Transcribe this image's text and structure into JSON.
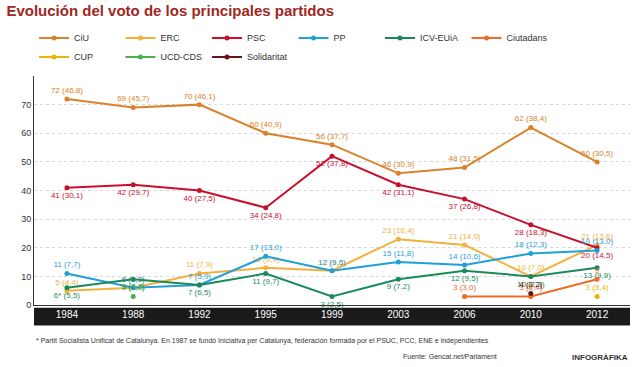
{
  "chart_data": {
    "type": "line",
    "title": "Evolución del voto de los principales partidos",
    "footnote": "* Partit Socialista Unificat de Catalunya. En 1987 se fundó Iniciativa per Catalunya, federación formada por el PSUC, PCC, ENE e independientes",
    "source": "Fuente: Gencat.net/Parlament",
    "credit": "INFOGRÀFIKA",
    "categories": [
      "1984",
      "1988",
      "1992",
      "1995",
      "1999",
      "2003",
      "2006",
      "2010",
      "2012"
    ],
    "ylim": [
      0,
      80
    ],
    "yticks": [
      0,
      10,
      20,
      30,
      40,
      50,
      60,
      70
    ],
    "grid": true,
    "legend": "top",
    "data_labels": true,
    "marker": "circle",
    "series": [
      {
        "name": "CiU",
        "color": "#d9822b",
        "values": [
          72,
          69,
          70,
          60,
          56,
          46,
          48,
          62,
          50
        ],
        "value_labels": [
          "72 (46,8)",
          "69 (45,7)",
          "70 (46,1)",
          "60 (40,9)",
          "56 (37,7)",
          "46 (30,9)",
          "48 (31,5)",
          "62 (38,4)",
          "50 (30,5)"
        ]
      },
      {
        "name": "ERC",
        "color": "#f4b03c",
        "values": [
          5,
          6,
          11,
          13,
          12,
          23,
          21,
          10,
          21
        ],
        "value_labels": [
          "5 (4,4)",
          "6 (4,1)",
          "11 (7,9)",
          "13 (9,4)",
          "12 (8,6)",
          "23 (16,4)",
          "21 (14,0)",
          "10 (7,0)",
          "21 (13,6)"
        ]
      },
      {
        "name": "PSC",
        "color": "#c8102e",
        "values": [
          41,
          42,
          40,
          34,
          52,
          42,
          37,
          28,
          20
        ],
        "value_labels": [
          "41 (30,1)",
          "42 (29,7)",
          "40 (27,5)",
          "34 (24,8)",
          "52 (37,8)",
          "42 (31,1)",
          "37 (26,8)",
          "28 (18,3)",
          "20 (14,5)"
        ]
      },
      {
        "name": "PP",
        "color": "#1fa0d8",
        "values": [
          11,
          6,
          7,
          17,
          12,
          15,
          14,
          18,
          19
        ],
        "value_labels": [
          "11 (7,7)",
          "6 (5,3)",
          "7 (5,9)",
          "17 (13,0)",
          "12 (9,5)",
          "15 (11,8)",
          "14 (10,6)",
          "18 (12,3)",
          "19 (13,0)"
        ]
      },
      {
        "name": "ICV-EUiA",
        "color": "#1b8a5a",
        "values": [
          6,
          9,
          7,
          11,
          3,
          9,
          12,
          10,
          13
        ],
        "value_labels": [
          "6* (5,5)",
          "9 (7,7)",
          "7 (6,5)",
          "11 (9,7)",
          "3 (2,5)",
          "9 (7,2)",
          "12 (9,5)",
          "10 (7,3)",
          "13 (9,9)"
        ]
      },
      {
        "name": "Ciutadans",
        "color": "#ec6a2c",
        "values": [
          null,
          null,
          null,
          null,
          null,
          null,
          3,
          3,
          9
        ],
        "value_labels": [
          null,
          null,
          null,
          null,
          null,
          null,
          "3 (3,0)",
          "3 (3,4)",
          "9"
        ]
      },
      {
        "name": "CUP",
        "color": "#e6b800",
        "values": [
          null,
          null,
          null,
          null,
          null,
          null,
          null,
          null,
          3
        ],
        "value_labels": [
          null,
          null,
          null,
          null,
          null,
          null,
          null,
          null,
          "3 (3,4)"
        ]
      },
      {
        "name": "UCD-CDS",
        "color": "#4caf50",
        "values": [
          null,
          3,
          null,
          null,
          null,
          null,
          null,
          null,
          null
        ],
        "value_labels": [
          null,
          "3 (3,8)",
          null,
          null,
          null,
          null,
          null,
          null,
          null
        ]
      },
      {
        "name": "Solidaritat",
        "color": "#6b1515",
        "values": [
          null,
          null,
          null,
          null,
          null,
          null,
          null,
          4,
          null
        ],
        "value_labels": [
          null,
          null,
          null,
          null,
          null,
          null,
          null,
          "4 (3,2)",
          null
        ]
      }
    ]
  }
}
